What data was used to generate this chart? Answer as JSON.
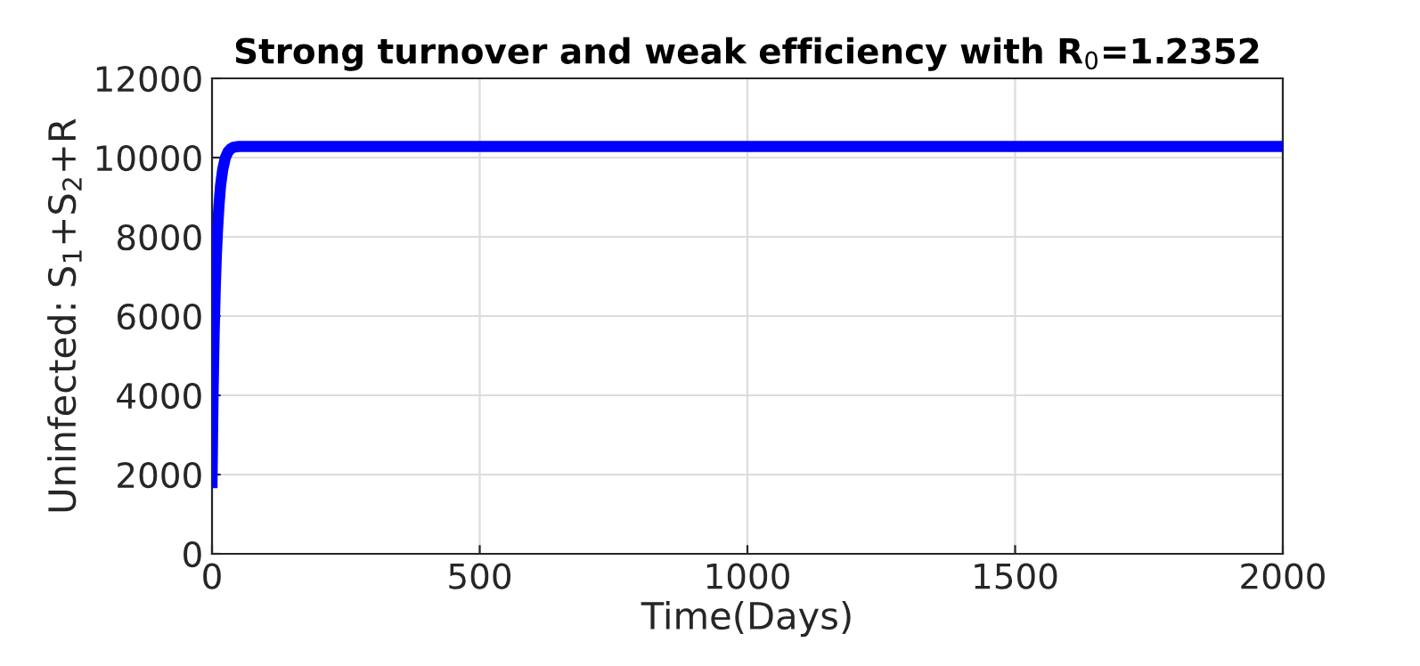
{
  "chart_data": {
    "type": "line",
    "title": "Strong turnover and weak efficiency with R$_{0}$=1.2352",
    "xlabel": "Time(Days)",
    "ylabel": "Uninfected: S$_{1}$+S$_{2}$+R",
    "series": [
      {
        "color": "#0000ff",
        "x": [
          0,
          1,
          2,
          4,
          6,
          8,
          10,
          13,
          16,
          20,
          25,
          30,
          35,
          40,
          50,
          100,
          500,
          1000,
          1500,
          2000
        ],
        "values": [
          1800,
          3000,
          4100,
          5600,
          6700,
          7500,
          8100,
          8800,
          9300,
          9700,
          10000,
          10150,
          10220,
          10260,
          10280,
          10280,
          10280,
          10280,
          10280,
          10280
        ]
      }
    ],
    "xlim": [
      0,
      2000
    ],
    "ylim": [
      0,
      12000
    ],
    "xticks": [
      0,
      500,
      1000,
      1500,
      2000
    ],
    "yticks": [
      0,
      2000,
      4000,
      6000,
      8000,
      10000,
      12000
    ],
    "grid": true,
    "line_style": "solid"
  }
}
